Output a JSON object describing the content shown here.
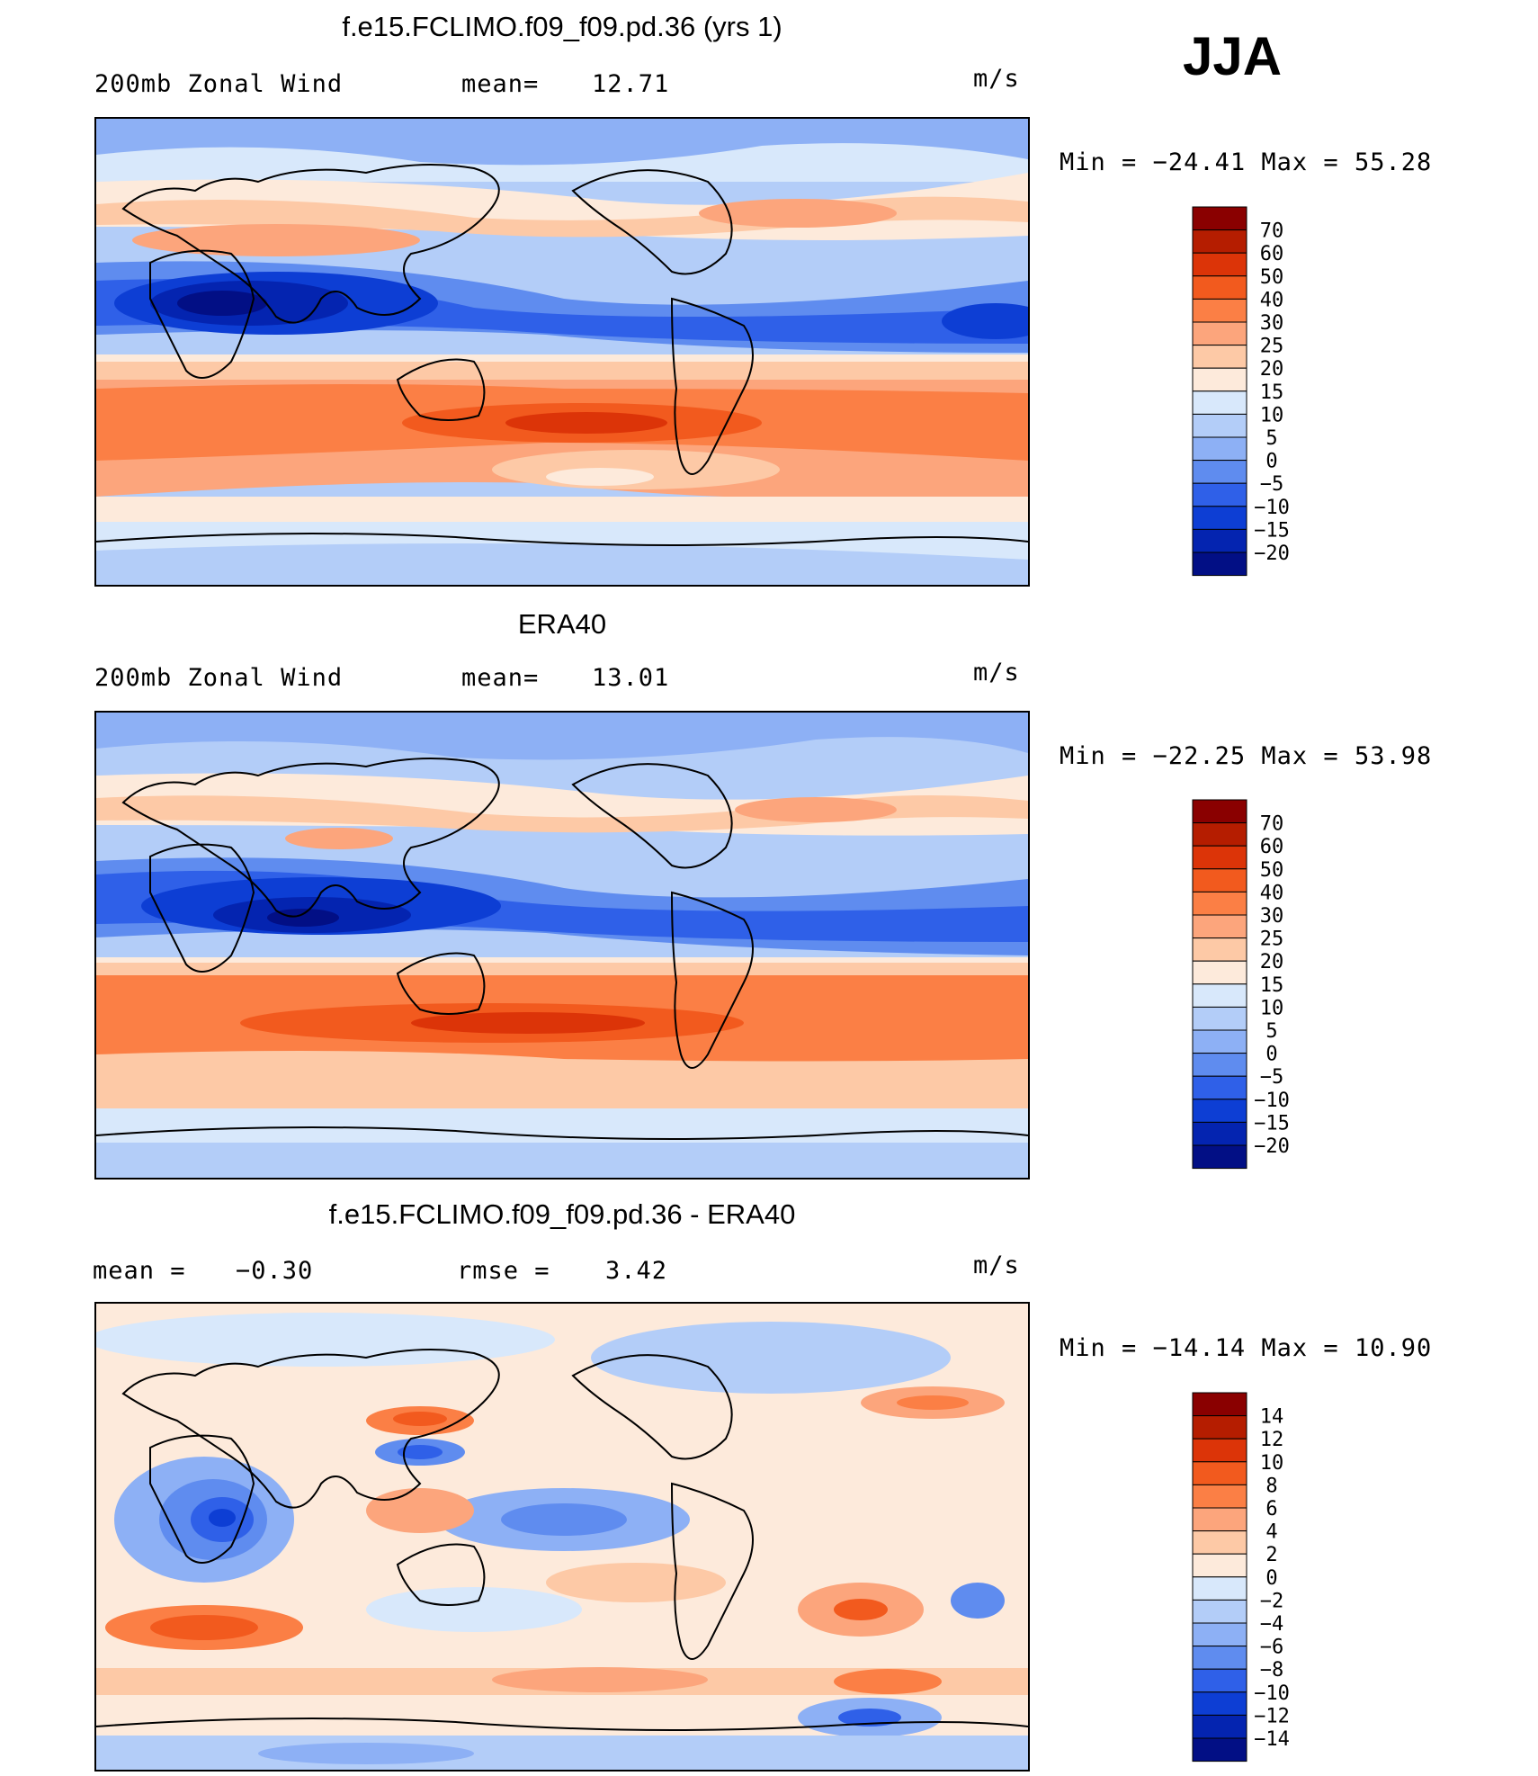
{
  "season_label": "JJA",
  "panels": [
    {
      "title": "f.e15.FCLIMO.f09_f09.pd.36 (yrs 1)",
      "left_label": "200mb Zonal Wind",
      "stat_label": "mean=",
      "stat_value": "12.71",
      "units": "m/s",
      "minmax_min_label": "Min",
      "min_value": "−24.41",
      "minmax_max_label": "Max",
      "max_value": "55.28"
    },
    {
      "title": "ERA40",
      "left_label": "200mb Zonal Wind",
      "stat_label": "mean=",
      "stat_value": "13.01",
      "units": "m/s",
      "minmax_min_label": "Min",
      "min_value": "−22.25",
      "minmax_max_label": "Max",
      "max_value": "53.98"
    },
    {
      "title": "f.e15.FCLIMO.f09_f09.pd.36 - ERA40",
      "left_label": "mean =",
      "left_value": "−0.30",
      "stat_label": "rmse =",
      "stat_value": "3.42",
      "units": "m/s",
      "minmax_min_label": "Min",
      "min_value": "−14.14",
      "minmax_max_label": "Max",
      "max_value": "10.90"
    }
  ],
  "chart_data": [
    {
      "type": "heatmap",
      "title": "f.e15.FCLIMO.f09_f09.pd.36 (yrs 1)",
      "field": "200mb Zonal Wind",
      "units": "m/s",
      "mean": 12.71,
      "min": -24.41,
      "max": 55.28,
      "colorbar_levels": [
        70,
        60,
        50,
        40,
        30,
        25,
        20,
        15,
        10,
        5,
        0,
        -5,
        -10,
        -15,
        -20
      ],
      "colorbar_colors": [
        "#8a0000",
        "#b51d00",
        "#dc3408",
        "#f25a1e",
        "#fb7f45",
        "#fca57c",
        "#fdc9a6",
        "#fdeadb",
        "#d8e8fb",
        "#b3cdf8",
        "#8db0f5",
        "#5f8cef",
        "#2f60e8",
        "#0d3ed4",
        "#0424b0",
        "#020f85"
      ]
    },
    {
      "type": "heatmap",
      "title": "ERA40",
      "field": "200mb Zonal Wind",
      "units": "m/s",
      "mean": 13.01,
      "min": -22.25,
      "max": 53.98,
      "colorbar_levels": [
        70,
        60,
        50,
        40,
        30,
        25,
        20,
        15,
        10,
        5,
        0,
        -5,
        -10,
        -15,
        -20
      ],
      "colorbar_colors": [
        "#8a0000",
        "#b51d00",
        "#dc3408",
        "#f25a1e",
        "#fb7f45",
        "#fca57c",
        "#fdc9a6",
        "#fdeadb",
        "#d8e8fb",
        "#b3cdf8",
        "#8db0f5",
        "#5f8cef",
        "#2f60e8",
        "#0d3ed4",
        "#0424b0",
        "#020f85"
      ]
    },
    {
      "type": "heatmap",
      "title": "f.e15.FCLIMO.f09_f09.pd.36 - ERA40",
      "units": "m/s",
      "mean": -0.3,
      "rmse": 3.42,
      "min": -14.14,
      "max": 10.9,
      "colorbar_levels": [
        14,
        12,
        10,
        8,
        6,
        4,
        2,
        0,
        -2,
        -4,
        -6,
        -8,
        -10,
        -12,
        -14
      ],
      "colorbar_colors": [
        "#8a0000",
        "#b51d00",
        "#dc3408",
        "#f25a1e",
        "#fb7f45",
        "#fca57c",
        "#fdc9a6",
        "#fdeadb",
        "#d8e8fb",
        "#b3cdf8",
        "#8db0f5",
        "#5f8cef",
        "#2f60e8",
        "#0d3ed4",
        "#0424b0",
        "#020f85"
      ]
    }
  ]
}
